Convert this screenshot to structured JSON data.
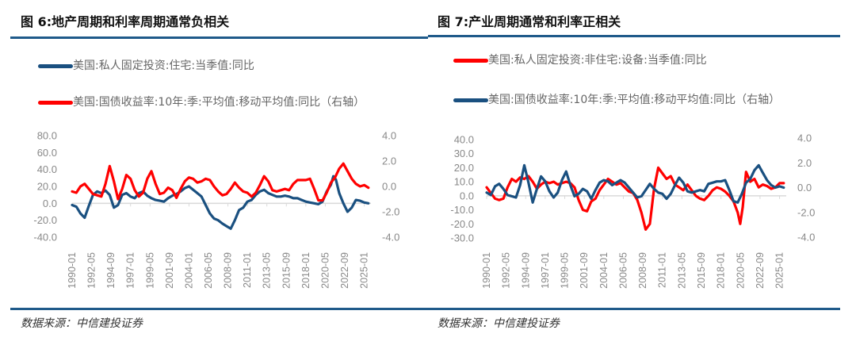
{
  "figures": [
    {
      "title": "图 6:地产周期和利率周期通常负相关",
      "source": "数据来源：中信建投证券",
      "legend": [
        {
          "label": "美国:私人固定投资:住宅:当季值:同比",
          "color": "#1a5080"
        },
        {
          "label": "美国:国债收益率:10年:季:平均值:移动平均值:同比（右轴）",
          "color": "#ff0000"
        }
      ]
    },
    {
      "title": "图 7:产业周期通常和利率正相关",
      "source": "数据来源：中信建投证券",
      "legend": [
        {
          "label": "美国:私人固定投资:非住宅:设备:当季值:同比",
          "color": "#ff0000"
        },
        {
          "label": "美国:国债收益率:10年:季:平均值:移动平均值:同比（右轴）",
          "color": "#1a5080"
        }
      ]
    }
  ],
  "chart_data": [
    {
      "type": "line",
      "title": "图 6:地产周期和利率周期通常负相关",
      "x_tick_labels": [
        "1990-01",
        "1992-05",
        "1994-09",
        "1997-01",
        "1999-05",
        "2001-09",
        "2004-01",
        "2006-05",
        "2008-09",
        "2011-01",
        "2013-05",
        "2015-09",
        "2018-01",
        "2020-05",
        "2022-09",
        "2025-01"
      ],
      "x_range": [
        1990.0,
        2025.8
      ],
      "y_left": {
        "ticks": [
          "80.0",
          "60.0",
          "40.0",
          "20.0",
          "0.0",
          "-20.0",
          "-40.0"
        ],
        "range": [
          -40,
          80
        ]
      },
      "y_right": {
        "ticks": [
          "4.0",
          "2.0",
          "0.0",
          "-2.0",
          "-4.0"
        ],
        "range": [
          -4,
          4
        ]
      },
      "grid": false,
      "legend_position": "top",
      "series": [
        {
          "name": "美国:私人固定投资:住宅:当季值:同比",
          "axis": "left",
          "color": "#1a5080",
          "x": [
            1990.0,
            1990.5,
            1991.0,
            1991.5,
            1992.0,
            1992.5,
            1993.0,
            1993.5,
            1994.0,
            1994.5,
            1995.0,
            1995.5,
            1996.0,
            1996.5,
            1997.0,
            1997.5,
            1998.0,
            1998.5,
            1999.0,
            1999.5,
            2000.0,
            2000.5,
            2001.0,
            2001.5,
            2002.0,
            2002.5,
            2003.0,
            2003.5,
            2004.0,
            2004.5,
            2005.0,
            2005.5,
            2006.0,
            2006.5,
            2007.0,
            2007.5,
            2008.0,
            2008.5,
            2009.0,
            2009.5,
            2010.0,
            2010.5,
            2011.0,
            2011.5,
            2012.0,
            2012.5,
            2013.0,
            2013.5,
            2014.0,
            2014.5,
            2015.0,
            2015.5,
            2016.0,
            2016.5,
            2017.0,
            2017.5,
            2018.0,
            2018.5,
            2019.0,
            2019.5,
            2020.0,
            2020.5,
            2021.0,
            2021.3,
            2021.6,
            2022.0,
            2022.5,
            2023.0,
            2023.5,
            2024.0,
            2024.5,
            2025.0,
            2025.5
          ],
          "values": [
            -2,
            -4,
            -12,
            -17,
            -3,
            10,
            14,
            12,
            15,
            10,
            -5,
            -2,
            10,
            12,
            8,
            6,
            12,
            14,
            9,
            6,
            4,
            3,
            2,
            6,
            9,
            11,
            14,
            18,
            20,
            16,
            12,
            8,
            -2,
            -12,
            -18,
            -20,
            -24,
            -27,
            -30,
            -20,
            -8,
            -5,
            2,
            4,
            10,
            14,
            16,
            12,
            10,
            8,
            8,
            9,
            8,
            6,
            6,
            4,
            2,
            1,
            0,
            -1,
            2,
            14,
            22,
            32,
            28,
            12,
            0,
            -10,
            -5,
            4,
            3,
            1,
            0
          ]
        },
        {
          "name": "美国:国债收益率:10年:季:平均值:移动平均值:同比（右轴）",
          "axis": "right",
          "color": "#ff0000",
          "x": [
            1990.0,
            1990.5,
            1991.0,
            1991.5,
            1992.0,
            1992.5,
            1993.0,
            1993.5,
            1994.0,
            1994.5,
            1995.0,
            1995.5,
            1996.0,
            1996.5,
            1997.0,
            1997.5,
            1998.0,
            1998.5,
            1999.0,
            1999.5,
            2000.0,
            2000.5,
            2001.0,
            2001.5,
            2002.0,
            2002.5,
            2003.0,
            2003.5,
            2004.0,
            2004.5,
            2005.0,
            2005.5,
            2006.0,
            2006.5,
            2007.0,
            2007.5,
            2008.0,
            2008.5,
            2009.0,
            2009.5,
            2010.0,
            2010.5,
            2011.0,
            2011.5,
            2012.0,
            2012.5,
            2013.0,
            2013.5,
            2014.0,
            2014.5,
            2015.0,
            2015.5,
            2016.0,
            2016.5,
            2017.0,
            2017.5,
            2018.0,
            2018.5,
            2019.0,
            2019.5,
            2020.0,
            2020.5,
            2021.0,
            2021.5,
            2022.0,
            2022.5,
            2023.0,
            2023.5,
            2024.0,
            2024.5,
            2025.0,
            2025.5
          ],
          "values": [
            -0.4,
            -0.5,
            0.0,
            0.2,
            -0.2,
            -0.6,
            -0.7,
            -0.8,
            0.2,
            1.6,
            0.4,
            -1.0,
            -0.2,
            0.9,
            0.6,
            -0.3,
            -0.8,
            -0.5,
            0.6,
            1.2,
            0.2,
            -0.6,
            -0.5,
            -0.1,
            -0.3,
            -0.9,
            -0.2,
            0.4,
            0.7,
            0.6,
            0.3,
            0.4,
            0.6,
            0.5,
            0.0,
            -0.4,
            -0.7,
            -0.6,
            -0.2,
            0.3,
            -0.1,
            -0.4,
            -0.5,
            -0.8,
            -0.5,
            0.1,
            0.8,
            0.4,
            -0.3,
            -0.4,
            -0.3,
            -0.2,
            -0.3,
            0.2,
            0.5,
            0.5,
            0.5,
            0.6,
            -0.2,
            -1.1,
            -1.1,
            -0.5,
            0.3,
            0.7,
            1.4,
            1.8,
            1.2,
            0.6,
            0.2,
            0.0,
            0.1,
            -0.1
          ]
        }
      ]
    },
    {
      "type": "line",
      "title": "图 7:产业周期通常和利率正相关",
      "x_tick_labels": [
        "1990-01",
        "1992-05",
        "1994-09",
        "1997-01",
        "1999-05",
        "2001-09",
        "2004-01",
        "2006-05",
        "2008-09",
        "2011-01",
        "2013-05",
        "2015-09",
        "2018-01",
        "2020-05",
        "2022-09",
        "2025-01"
      ],
      "x_range": [
        1990.0,
        2025.8
      ],
      "y_left": {
        "ticks": [
          "40.0",
          "30.0",
          "20.0",
          "10.0",
          "0.0",
          "-10.0",
          "-20.0",
          "-30.0"
        ],
        "range": [
          -30,
          40
        ]
      },
      "y_right": {
        "ticks": [
          "4.0",
          "2.0",
          "0.0",
          "-2.0",
          "-4.0"
        ],
        "range": [
          -4,
          4
        ]
      },
      "grid": false,
      "legend_position": "top",
      "series": [
        {
          "name": "美国:私人固定投资:非住宅:设备:当季值:同比",
          "axis": "left",
          "color": "#ff0000",
          "x": [
            1990.0,
            1990.5,
            1991.0,
            1991.5,
            1992.0,
            1992.5,
            1993.0,
            1993.5,
            1994.0,
            1994.5,
            1995.0,
            1995.5,
            1996.0,
            1996.5,
            1997.0,
            1997.5,
            1998.0,
            1998.5,
            1999.0,
            1999.5,
            2000.0,
            2000.5,
            2001.0,
            2001.5,
            2002.0,
            2002.5,
            2003.0,
            2003.5,
            2004.0,
            2004.5,
            2005.0,
            2005.5,
            2006.0,
            2006.5,
            2007.0,
            2007.5,
            2008.0,
            2008.5,
            2009.0,
            2009.5,
            2010.0,
            2010.5,
            2011.0,
            2011.5,
            2012.0,
            2012.5,
            2013.0,
            2013.5,
            2014.0,
            2014.5,
            2015.0,
            2015.5,
            2016.0,
            2016.5,
            2017.0,
            2017.5,
            2018.0,
            2018.5,
            2019.0,
            2019.5,
            2020.0,
            2020.3,
            2020.6,
            2021.0,
            2021.5,
            2022.0,
            2022.5,
            2023.0,
            2023.5,
            2024.0,
            2024.5,
            2025.0,
            2025.5
          ],
          "values": [
            6,
            2,
            -2,
            -3,
            -2,
            6,
            12,
            10,
            13,
            12,
            14,
            10,
            5,
            8,
            10,
            9,
            10,
            8,
            9,
            10,
            9,
            6,
            -3,
            -10,
            -11,
            -4,
            -2,
            4,
            8,
            12,
            10,
            8,
            9,
            6,
            3,
            2,
            -3,
            -12,
            -24,
            -20,
            5,
            20,
            16,
            12,
            14,
            8,
            6,
            4,
            8,
            4,
            0,
            -2,
            -3,
            0,
            4,
            6,
            5,
            3,
            0,
            -4,
            -12,
            -20,
            -8,
            17,
            10,
            12,
            6,
            8,
            7,
            5,
            6,
            9,
            9
          ]
        },
        {
          "name": "美国:国债收益率:10年:季:平均值:移动平均值:同比（右轴）",
          "axis": "right",
          "color": "#1a5080",
          "x": [
            1990.0,
            1990.5,
            1991.0,
            1991.5,
            1992.0,
            1992.5,
            1993.0,
            1993.5,
            1994.0,
            1994.5,
            1995.0,
            1995.5,
            1996.0,
            1996.5,
            1997.0,
            1997.5,
            1998.0,
            1998.5,
            1999.0,
            1999.5,
            2000.0,
            2000.5,
            2001.0,
            2001.5,
            2002.0,
            2002.5,
            2003.0,
            2003.5,
            2004.0,
            2004.5,
            2005.0,
            2005.5,
            2006.0,
            2006.5,
            2007.0,
            2007.5,
            2008.0,
            2008.5,
            2009.0,
            2009.5,
            2010.0,
            2010.5,
            2011.0,
            2011.5,
            2012.0,
            2012.5,
            2013.0,
            2013.5,
            2014.0,
            2014.5,
            2015.0,
            2015.5,
            2016.0,
            2016.5,
            2017.0,
            2017.5,
            2018.0,
            2018.5,
            2019.0,
            2019.5,
            2020.0,
            2020.5,
            2021.0,
            2021.5,
            2022.0,
            2022.5,
            2023.0,
            2023.5,
            2024.0,
            2024.5,
            2025.0,
            2025.5
          ],
          "values": [
            -0.4,
            -0.6,
            0.1,
            0.3,
            -0.1,
            -0.6,
            -0.7,
            -0.8,
            0.2,
            1.8,
            0.4,
            -1.2,
            -0.1,
            0.9,
            0.5,
            -0.3,
            -0.8,
            -0.4,
            0.6,
            1.3,
            0.2,
            -0.7,
            -0.5,
            -0.1,
            -0.3,
            -0.9,
            -0.2,
            0.4,
            0.6,
            0.5,
            0.2,
            0.4,
            0.6,
            0.4,
            0.0,
            -0.4,
            -0.8,
            -0.7,
            -0.2,
            0.3,
            -0.1,
            -0.4,
            -0.5,
            -0.9,
            -0.5,
            0.2,
            0.8,
            0.4,
            -0.3,
            -0.4,
            -0.3,
            -0.2,
            -0.3,
            0.3,
            0.4,
            0.5,
            0.5,
            0.6,
            -0.2,
            -1.1,
            -1.2,
            -0.5,
            0.4,
            0.7,
            1.4,
            1.8,
            1.2,
            0.6,
            0.2,
            0.0,
            0.1,
            0.0
          ]
        }
      ]
    }
  ]
}
